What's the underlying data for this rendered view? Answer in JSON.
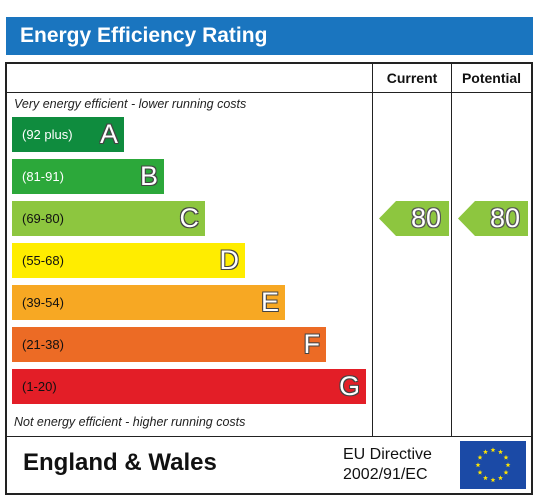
{
  "title": "Energy Efficiency Rating",
  "columns": {
    "current": "Current",
    "potential": "Potential"
  },
  "notes": {
    "top": "Very energy efficient - lower running costs",
    "bottom": "Not energy efficient - higher running costs"
  },
  "footer": {
    "region": "England & Wales",
    "directive_line1": "EU Directive",
    "directive_line2": "2002/91/EC"
  },
  "chart_data": {
    "type": "bar",
    "title": "Energy Efficiency Rating",
    "categories": [
      "A",
      "B",
      "C",
      "D",
      "E",
      "F",
      "G"
    ],
    "bands": [
      {
        "letter": "A",
        "range": "(92 plus)",
        "color": "#0f8c3e",
        "range_color": "#ffffff"
      },
      {
        "letter": "B",
        "range": "(81-91)",
        "color": "#2ca83a",
        "range_color": "#ffffff"
      },
      {
        "letter": "C",
        "range": "(69-80)",
        "color": "#8dc63f",
        "range_color": "#111111"
      },
      {
        "letter": "D",
        "range": "(55-68)",
        "color": "#ffed00",
        "range_color": "#111111"
      },
      {
        "letter": "E",
        "range": "(39-54)",
        "color": "#f7a823",
        "range_color": "#111111"
      },
      {
        "letter": "F",
        "range": "(21-38)",
        "color": "#ec6b25",
        "range_color": "#111111"
      },
      {
        "letter": "G",
        "range": "(1-20)",
        "color": "#e31e27",
        "range_color": "#111111"
      }
    ],
    "series": [
      {
        "name": "Current",
        "value": 80,
        "band": "C",
        "color": "#8dc63f"
      },
      {
        "name": "Potential",
        "value": 80,
        "band": "C",
        "color": "#8dc63f"
      }
    ]
  }
}
